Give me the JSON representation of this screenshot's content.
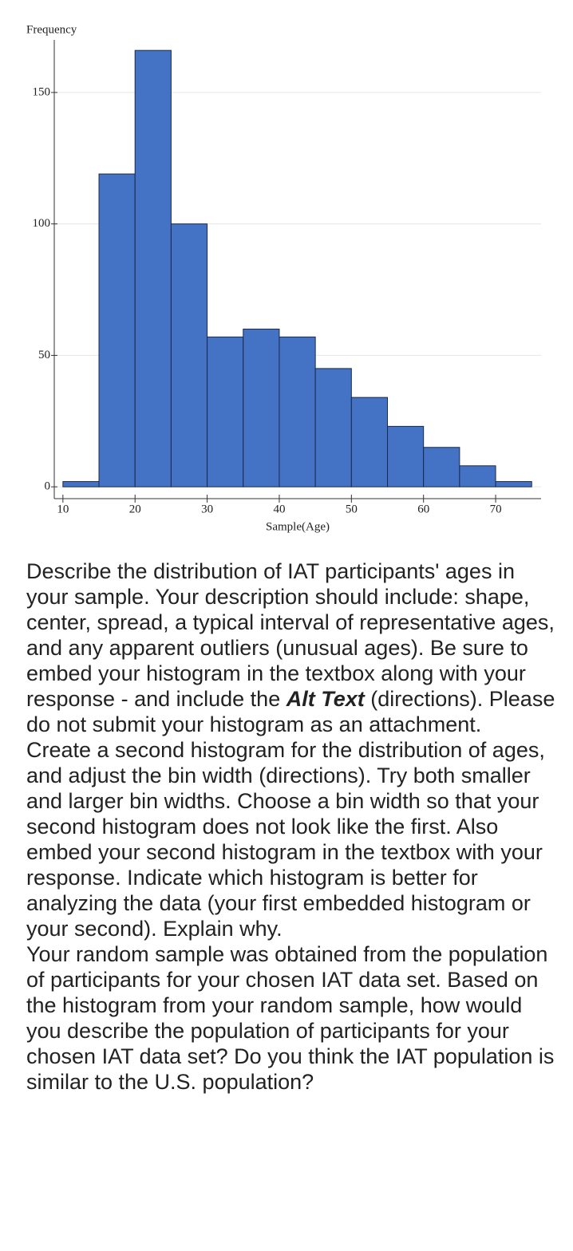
{
  "chart_data": {
    "type": "histogram",
    "y_label": "Frequency",
    "x_label": "Sample(Age)",
    "bins": [
      10,
      15,
      20,
      25,
      30,
      35,
      40,
      45,
      50,
      55,
      60,
      65,
      70,
      75
    ],
    "counts": [
      2,
      119,
      166,
      100,
      57,
      60,
      57,
      45,
      34,
      23,
      15,
      8,
      2
    ],
    "color": "#4472c4",
    "xlim": [
      8.8,
      76.3
    ],
    "ylim": [
      -4.5,
      170
    ],
    "xticks": [
      10,
      20,
      30,
      40,
      50,
      60,
      70
    ],
    "yticks": [
      0,
      50,
      100,
      150
    ],
    "grid": true
  },
  "paragraphs": [
    [
      "Describe the distribution of IAT participants' ages in your sample. Your description should include: shape, center, spread, a typical interval of representative ages, and any apparent outliers (unusual ages). Be sure to embed your histogram in the textbox along with your response - and include the ",
      "Alt Text",
      " (directions). Please do not submit your histogram as an attachment."
    ],
    [
      "Create a second histogram for the distribution of ages, and adjust the bin width (directions). Try both smaller and larger bin widths. Choose a bin width so that your second histogram does not look like the first. Also embed your second histogram in the textbox with your response. Indicate which histogram is better for analyzing the data (your first embedded histogram or your second). Explain why."
    ],
    [
      "Your random sample was obtained from the population of participants for your chosen IAT data set. Based on the histogram from your random sample, how would you describe the population of participants for your chosen IAT data set? Do you think the IAT population is similar to the U.S. population?"
    ]
  ]
}
